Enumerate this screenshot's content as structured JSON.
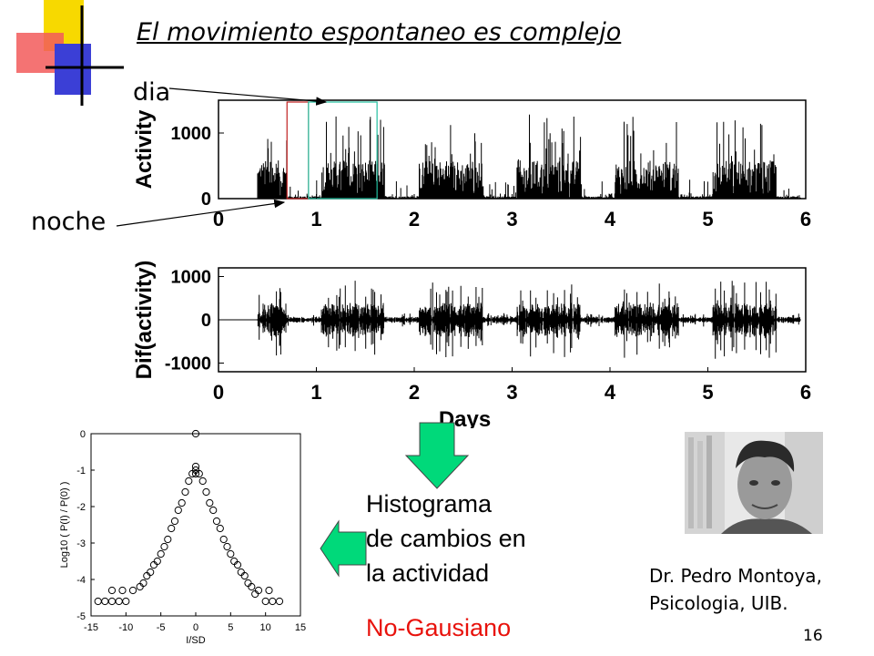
{
  "slide": {
    "title": "El movimiento espontaneo es complejo",
    "label_day": "dia",
    "label_night": "noche",
    "histogram_text": [
      "Histograma",
      "de cambios en",
      "la actividad"
    ],
    "result": "No-Gausiano",
    "credit_lines": [
      "Dr. Pedro Montoya,",
      "Psicologia, UIB."
    ],
    "page_number": "16",
    "colors": {
      "accent_red": "#e8120c",
      "arrow_green": "#00d97a",
      "day_box": "#22c0a0",
      "night_box": "#c02020"
    },
    "icons": [
      "down-arrow-icon",
      "left-arrow-icon",
      "photo"
    ]
  },
  "chart_data": [
    {
      "type": "bar",
      "ylabel": "Activity",
      "xlim": [
        0,
        6
      ],
      "ylim": [
        0,
        1500
      ],
      "x_ticks": [
        "0",
        "1",
        "2",
        "3",
        "4",
        "5",
        "6"
      ],
      "y_ticks": [
        "0",
        "1000"
      ],
      "data_start_day": 0.4,
      "data_end_day": 5.95,
      "peak_day_level": 1300,
      "peak_night_level": 80,
      "highlight_night": [
        0.7,
        0.92
      ],
      "highlight_day": [
        0.92,
        1.62
      ]
    },
    {
      "type": "bar",
      "ylabel": "Dif(activity)",
      "xlabel": "Days",
      "xlim": [
        0,
        6
      ],
      "ylim": [
        -1200,
        1200
      ],
      "x_ticks": [
        "0",
        "1",
        "2",
        "3",
        "4",
        "5",
        "6"
      ],
      "y_ticks": [
        "1000",
        "0",
        "-1000"
      ]
    },
    {
      "type": "scatter",
      "xlabel": "I/SD",
      "ylabel": "Log10 ( P(I) / P(0) )",
      "xlim": [
        -15,
        15
      ],
      "ylim": [
        -5,
        0
      ],
      "x_ticks": [
        "-15",
        "-10",
        "-5",
        "0",
        "5",
        "10",
        "15"
      ],
      "y_ticks": [
        "0",
        "-1",
        "-2",
        "-3",
        "-4",
        "-5"
      ],
      "points": [
        [
          0,
          0
        ],
        [
          0,
          -0.9
        ],
        [
          0,
          -1.0
        ],
        [
          0,
          -1.1
        ],
        [
          -0.5,
          -1.1
        ],
        [
          -1,
          -1.3
        ],
        [
          -1.5,
          -1.6
        ],
        [
          -2,
          -1.9
        ],
        [
          -2.5,
          -2.1
        ],
        [
          -3,
          -2.4
        ],
        [
          -3.5,
          -2.6
        ],
        [
          -4,
          -2.9
        ],
        [
          -4.5,
          -3.1
        ],
        [
          -5,
          -3.3
        ],
        [
          -5.5,
          -3.5
        ],
        [
          -6,
          -3.6
        ],
        [
          -6.5,
          -3.8
        ],
        [
          -7,
          -3.9
        ],
        [
          -7.5,
          -4.1
        ],
        [
          -8,
          -4.2
        ],
        [
          -9,
          -4.3
        ],
        [
          -10,
          -4.6
        ],
        [
          -11,
          -4.6
        ],
        [
          -12,
          -4.6
        ],
        [
          -13,
          -4.6
        ],
        [
          -14,
          -4.6
        ],
        [
          -10.5,
          -4.3
        ],
        [
          -12,
          -4.3
        ],
        [
          0.5,
          -1.1
        ],
        [
          1,
          -1.3
        ],
        [
          1.5,
          -1.6
        ],
        [
          2,
          -1.9
        ],
        [
          2.5,
          -2.1
        ],
        [
          3,
          -2.4
        ],
        [
          3.5,
          -2.6
        ],
        [
          4,
          -2.9
        ],
        [
          4.5,
          -3.1
        ],
        [
          5,
          -3.3
        ],
        [
          5.5,
          -3.5
        ],
        [
          6,
          -3.6
        ],
        [
          6.5,
          -3.8
        ],
        [
          7,
          -3.9
        ],
        [
          7.5,
          -4.1
        ],
        [
          8,
          -4.2
        ],
        [
          9,
          -4.3
        ],
        [
          10,
          -4.6
        ],
        [
          11,
          -4.6
        ],
        [
          12,
          -4.6
        ],
        [
          8.5,
          -4.4
        ],
        [
          10.5,
          -4.3
        ]
      ]
    }
  ]
}
